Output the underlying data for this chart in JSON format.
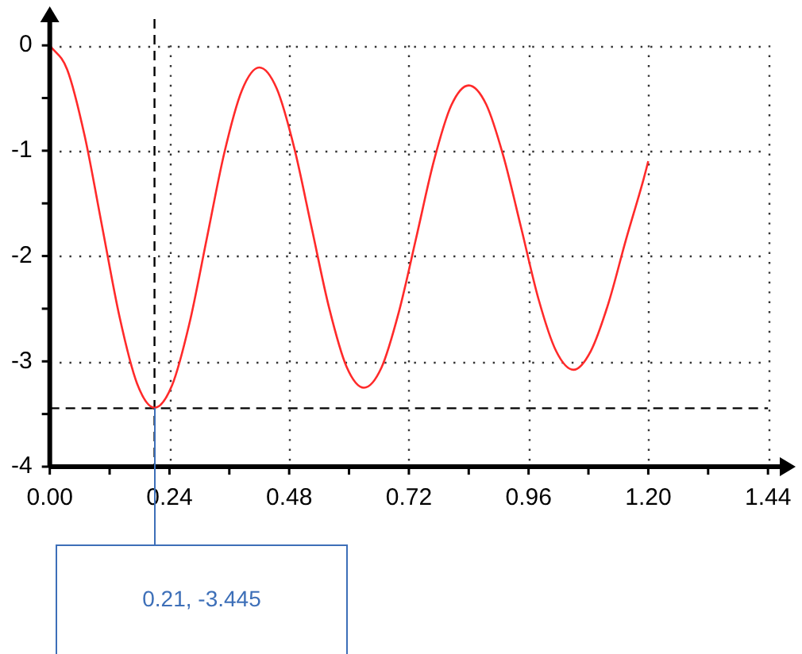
{
  "chart_data": {
    "type": "line",
    "x": [
      0,
      0.035,
      0.07,
      0.105,
      0.14,
      0.175,
      0.21,
      0.245,
      0.28,
      0.315,
      0.35,
      0.385,
      0.42,
      0.455,
      0.49,
      0.525,
      0.56,
      0.595,
      0.63,
      0.665,
      0.7,
      0.735,
      0.77,
      0.805,
      0.84,
      0.875,
      0.91,
      0.945,
      0.98,
      1.015,
      1.05,
      1.085,
      1.12,
      1.155,
      1.19,
      1.2
    ],
    "series": [
      {
        "color": "#ff2a2a",
        "values": [
          0,
          -0.23,
          -0.86,
          -1.72,
          -2.58,
          -3.21,
          -3.44,
          -3.23,
          -2.64,
          -1.83,
          -1.02,
          -0.43,
          -0.21,
          -0.41,
          -0.97,
          -1.73,
          -2.49,
          -3.05,
          -3.25,
          -3.06,
          -2.53,
          -1.82,
          -1.1,
          -0.57,
          -0.38,
          -0.56,
          -1.06,
          -1.73,
          -2.41,
          -2.9,
          -3.08,
          -2.9,
          -2.45,
          -1.85,
          -1.28,
          -1.1
        ]
      }
    ],
    "xlim": [
      0,
      1.47
    ],
    "ylim": [
      -4,
      0.25
    ],
    "xticks": [
      {
        "value": 0,
        "label": "0.00"
      },
      {
        "value": 0.12,
        "label": null
      },
      {
        "value": 0.24,
        "label": "0.24"
      },
      {
        "value": 0.36,
        "label": null
      },
      {
        "value": 0.48,
        "label": "0.48"
      },
      {
        "value": 0.6,
        "label": null
      },
      {
        "value": 0.72,
        "label": "0.72"
      },
      {
        "value": 0.84,
        "label": null
      },
      {
        "value": 0.96,
        "label": "0.96"
      },
      {
        "value": 1.08,
        "label": null
      },
      {
        "value": 1.2,
        "label": "1.20"
      },
      {
        "value": 1.32,
        "label": null
      },
      {
        "value": 1.44,
        "label": "1.44"
      }
    ],
    "yticks": [
      {
        "value": -4,
        "label": "-4"
      },
      {
        "value": -3.5,
        "label": null
      },
      {
        "value": -3,
        "label": "-3"
      },
      {
        "value": -2.5,
        "label": null
      },
      {
        "value": -2,
        "label": "-2"
      },
      {
        "value": -1.5,
        "label": null
      },
      {
        "value": -1,
        "label": "-1"
      },
      {
        "value": -0.5,
        "label": null
      },
      {
        "value": 0,
        "label": "0"
      }
    ],
    "ref_lines": [
      {
        "axis": "x",
        "value": 0.21,
        "color": "#000000",
        "line_style": "dashed"
      },
      {
        "axis": "y",
        "value": -3.445,
        "color": "#000000",
        "line_style": "dashed"
      }
    ],
    "annotations": [
      "0.21, -3.445"
    ],
    "grid": true,
    "legend": false,
    "marker": "none",
    "line_style": "solid"
  }
}
